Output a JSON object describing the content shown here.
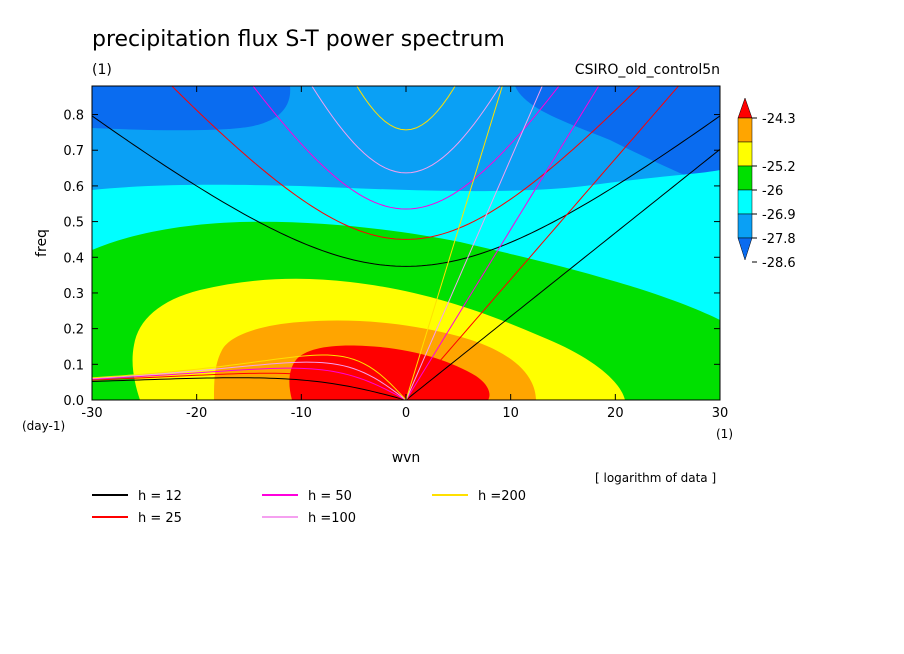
{
  "chart_data": {
    "type": "heatmap",
    "title": "precipitation flux S-T power spectrum",
    "subtitle_left": "(1)",
    "subtitle_right": "CSIRO_old_control5n",
    "xlabel": "wvn",
    "ylabel": "freq",
    "x_unit": "(1)",
    "y_unit": "(day-1)",
    "note": "[ logarithm of data ]",
    "xlim": [
      -30,
      30
    ],
    "ylim": [
      0,
      0.88
    ],
    "x_ticks": [
      -30,
      -20,
      -10,
      0,
      10,
      20,
      30
    ],
    "x_tick_labels": [
      "-30",
      "-20",
      "-10",
      "0",
      "10",
      "20",
      "30"
    ],
    "y_ticks": [
      0,
      0.1,
      0.2,
      0.3,
      0.4,
      0.5,
      0.6,
      0.7,
      0.8
    ],
    "y_tick_labels": [
      "0.0",
      "0.1",
      "0.2",
      "0.3",
      "0.4",
      "0.5",
      "0.6",
      "0.7",
      "0.8"
    ],
    "colorbar": {
      "levels": [
        -28.6,
        -27.8,
        -26.9,
        -26,
        -25.2,
        -24.3
      ],
      "level_labels": [
        "-28.6",
        "-27.8",
        "-26.9",
        "-26",
        "-25.2",
        "-24.3"
      ],
      "colors": [
        "#0a6cf0",
        "#0aa0f5",
        "#00ffff",
        "#00e000",
        "#ffff00",
        "#ffa500",
        "#ff0000"
      ],
      "extend": "both"
    },
    "dispersion_curves": [
      {
        "name": "h = 12",
        "h": 12,
        "color": "#000000"
      },
      {
        "name": "h = 25",
        "h": 25,
        "color": "#ff0000"
      },
      {
        "name": "h = 50",
        "h": 50,
        "color": "#ff00dd"
      },
      {
        "name": "h =100",
        "h": 100,
        "color": "#f5a0f0"
      },
      {
        "name": "h =200",
        "h": 200,
        "color": "#ffe000"
      }
    ]
  }
}
